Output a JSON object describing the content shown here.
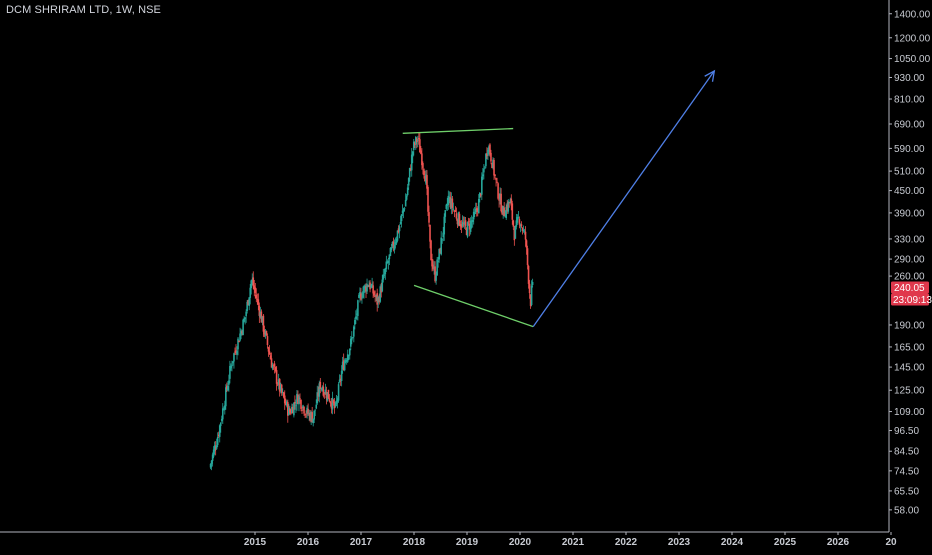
{
  "header": {
    "title": "DCM SHRIRAM LTD, 1W, NSE"
  },
  "colors": {
    "background": "#000000",
    "axis_line": "#b2b5be",
    "axis_text": "#c8cbd2",
    "candle_up": "#26a69a",
    "candle_down": "#ef5350",
    "trendline": "#6fcf6a",
    "arrow": "#4f7fe6",
    "badge": "#e0384c"
  },
  "chart_data": {
    "type": "candlestick",
    "title": "DCM SHRIRAM LTD, 1W, NSE",
    "interval": "1W",
    "exchange": "NSE",
    "y_scale": "log",
    "grid": false,
    "ylim": [
      54,
      1500
    ],
    "price_ticks": [
      "1400.00",
      "1200.00",
      "1050.00",
      "930.00",
      "810.00",
      "690.00",
      "590.00",
      "510.00",
      "450.00",
      "390.00",
      "330.00",
      "290.00",
      "260.00",
      "190.00",
      "165.00",
      "145.00",
      "125.00",
      "109.00",
      "96.50",
      "84.50",
      "74.50",
      "65.50",
      "58.00"
    ],
    "time_ticks": [
      "2015",
      "2016",
      "2017",
      "2018",
      "2019",
      "2020",
      "2021",
      "2022",
      "2023",
      "2024",
      "2025",
      "2026",
      "20"
    ],
    "last_price": "240.05",
    "countdown": "23:09:13",
    "price_path": [
      [
        "2014-03-01",
        76
      ],
      [
        "2014-05-01",
        95
      ],
      [
        "2014-08-01",
        150
      ],
      [
        "2014-11-01",
        200
      ],
      [
        "2014-12-15",
        255
      ],
      [
        "2015-02-01",
        215
      ],
      [
        "2015-05-01",
        150
      ],
      [
        "2015-07-01",
        125
      ],
      [
        "2015-09-01",
        108
      ],
      [
        "2015-11-01",
        120
      ],
      [
        "2016-01-01",
        108
      ],
      [
        "2016-02-15",
        105
      ],
      [
        "2016-04-01",
        130
      ],
      [
        "2016-06-01",
        120
      ],
      [
        "2016-07-15",
        110
      ],
      [
        "2016-09-01",
        145
      ],
      [
        "2016-11-01",
        170
      ],
      [
        "2017-01-01",
        230
      ],
      [
        "2017-03-01",
        250
      ],
      [
        "2017-05-01",
        220
      ],
      [
        "2017-07-01",
        275
      ],
      [
        "2017-09-01",
        330
      ],
      [
        "2017-10-01",
        360
      ],
      [
        "2017-11-15",
        430
      ],
      [
        "2018-01-01",
        590
      ],
      [
        "2018-02-01",
        630
      ],
      [
        "2018-03-01",
        560
      ],
      [
        "2018-04-01",
        480
      ],
      [
        "2018-05-01",
        300
      ],
      [
        "2018-06-01",
        260
      ],
      [
        "2018-07-01",
        300
      ],
      [
        "2018-09-01",
        430
      ],
      [
        "2018-11-01",
        380
      ],
      [
        "2019-01-01",
        350
      ],
      [
        "2019-03-01",
        380
      ],
      [
        "2019-04-01",
        420
      ],
      [
        "2019-06-01",
        610
      ],
      [
        "2019-07-01",
        540
      ],
      [
        "2019-08-01",
        460
      ],
      [
        "2019-09-15",
        390
      ],
      [
        "2019-11-01",
        420
      ],
      [
        "2019-12-01",
        340
      ],
      [
        "2020-01-01",
        380
      ],
      [
        "2020-02-15",
        330
      ],
      [
        "2020-03-20",
        220
      ],
      [
        "2020-03-30",
        240
      ]
    ],
    "annotations": [
      {
        "type": "trendline",
        "name": "upper-resistance",
        "points": [
          [
            "2017-10-15",
            650
          ],
          [
            "2019-11-15",
            670
          ]
        ]
      },
      {
        "type": "trendline",
        "name": "lower-support",
        "points": [
          [
            "2018-01-01",
            245
          ],
          [
            "2020-04-01",
            188
          ]
        ]
      },
      {
        "type": "arrow",
        "name": "projection",
        "points": [
          [
            "2020-04-01",
            188
          ],
          [
            "2023-09-01",
            970
          ]
        ]
      }
    ]
  }
}
